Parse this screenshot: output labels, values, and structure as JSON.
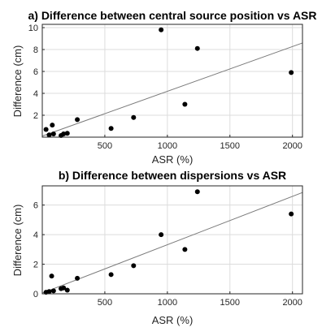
{
  "chart_data": [
    {
      "type": "scatter",
      "title": "a) Difference between central source position vs ASR",
      "xlabel": "ASR (%)",
      "ylabel": "Difference (cm)",
      "xlim": [
        0,
        2080
      ],
      "ylim": [
        0,
        10.3
      ],
      "xticks": [
        500,
        1000,
        1500,
        2000
      ],
      "yticks": [
        2,
        4,
        6,
        8,
        10
      ],
      "grid": true,
      "points": [
        {
          "x": 30,
          "y": 0.7
        },
        {
          "x": 55,
          "y": 0.2
        },
        {
          "x": 80,
          "y": 1.1
        },
        {
          "x": 90,
          "y": 0.3
        },
        {
          "x": 150,
          "y": 0.15
        },
        {
          "x": 170,
          "y": 0.3
        },
        {
          "x": 200,
          "y": 0.35
        },
        {
          "x": 280,
          "y": 1.6
        },
        {
          "x": 550,
          "y": 0.8
        },
        {
          "x": 730,
          "y": 1.8
        },
        {
          "x": 950,
          "y": 9.8
        },
        {
          "x": 1140,
          "y": 3.0
        },
        {
          "x": 1240,
          "y": 8.1
        },
        {
          "x": 1990,
          "y": 5.9
        }
      ],
      "fit_line": {
        "x": [
          0,
          2080
        ],
        "y": [
          0.1,
          8.6
        ]
      }
    },
    {
      "type": "scatter",
      "title": "b) Difference between dispersions vs ASR",
      "xlabel": "ASR (%)",
      "ylabel": "Difference (cm)",
      "xlim": [
        0,
        2080
      ],
      "ylim": [
        0,
        7.3
      ],
      "xticks": [
        500,
        1000,
        1500,
        2000
      ],
      "yticks": [
        0,
        2,
        4,
        6
      ],
      "grid": true,
      "points": [
        {
          "x": 30,
          "y": 0.1
        },
        {
          "x": 55,
          "y": 0.15
        },
        {
          "x": 75,
          "y": 1.2
        },
        {
          "x": 90,
          "y": 0.2
        },
        {
          "x": 150,
          "y": 0.35
        },
        {
          "x": 170,
          "y": 0.4
        },
        {
          "x": 200,
          "y": 0.25
        },
        {
          "x": 280,
          "y": 1.05
        },
        {
          "x": 550,
          "y": 1.3
        },
        {
          "x": 730,
          "y": 1.9
        },
        {
          "x": 950,
          "y": 4.0
        },
        {
          "x": 1140,
          "y": 3.0
        },
        {
          "x": 1240,
          "y": 6.9
        },
        {
          "x": 1990,
          "y": 5.4
        }
      ],
      "fit_line": {
        "x": [
          0,
          2080
        ],
        "y": [
          0.05,
          6.85
        ]
      }
    }
  ]
}
